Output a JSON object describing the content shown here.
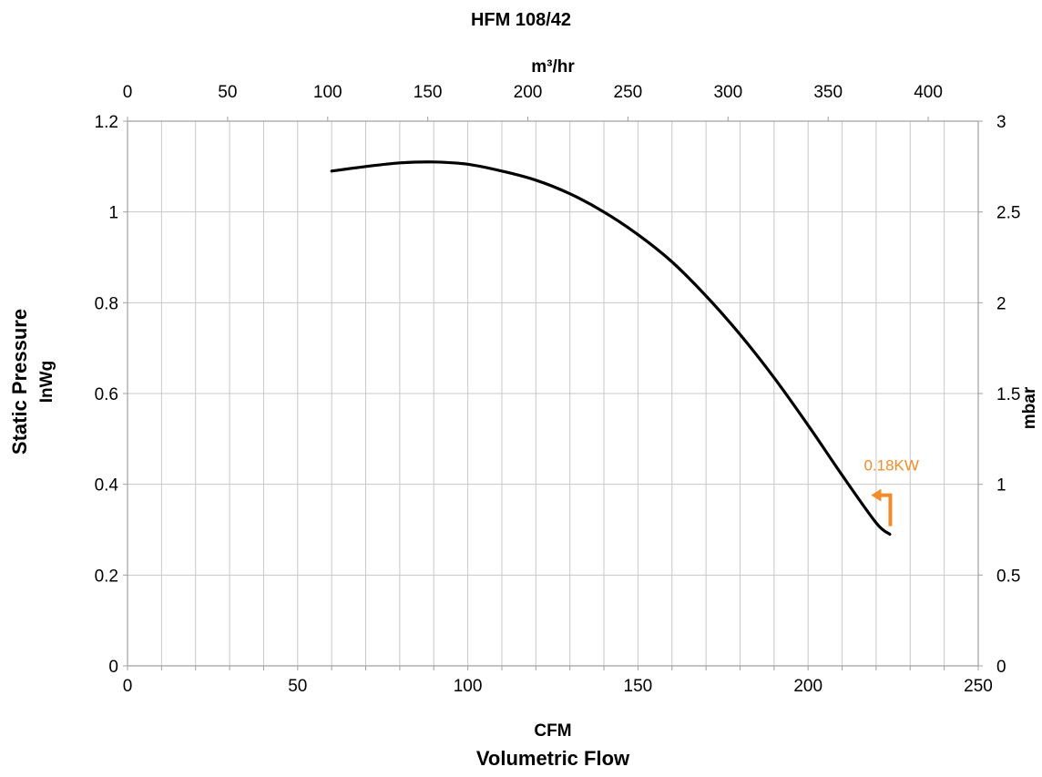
{
  "chart_data": {
    "type": "line",
    "title": "HFM 108/42",
    "xlabel": "CFM",
    "xlabel_secondary": "Volumetric Flow",
    "ylabel": "Static Pressure",
    "ylabel_unit": "InWg",
    "x_top_label": "m³/hr",
    "y_right_label": "mbar",
    "xlim": [
      0,
      250
    ],
    "ylim": [
      0,
      1.2
    ],
    "x_top_lim": [
      0,
      425
    ],
    "y_right_lim": [
      0,
      3
    ],
    "x_ticks": [
      "0",
      "50",
      "100",
      "150",
      "200",
      "250"
    ],
    "y_ticks": [
      "0",
      "0.2",
      "0.4",
      "0.6",
      "0.8",
      "1",
      "1.2"
    ],
    "x_top_ticks": [
      "0",
      "50",
      "100",
      "150",
      "200",
      "250",
      "300",
      "350",
      "400"
    ],
    "y_right_ticks": [
      "0",
      "0.5",
      "1",
      "1.5",
      "2",
      "2.5",
      "3"
    ],
    "grid": true,
    "series": [
      {
        "x": [
          60,
          70,
          80,
          90,
          100,
          110,
          120,
          130,
          140,
          150,
          160,
          170,
          180,
          190,
          200,
          210,
          220,
          224
        ],
        "y": [
          1.09,
          1.1,
          1.108,
          1.11,
          1.105,
          1.09,
          1.07,
          1.04,
          1.0,
          0.95,
          0.89,
          0.815,
          0.73,
          0.635,
          0.53,
          0.42,
          0.315,
          0.29
        ],
        "color": "#000000"
      }
    ],
    "annotations": [
      {
        "text": "0.18KW",
        "x": 218,
        "y": 0.4,
        "color": "#F28C28"
      }
    ]
  }
}
